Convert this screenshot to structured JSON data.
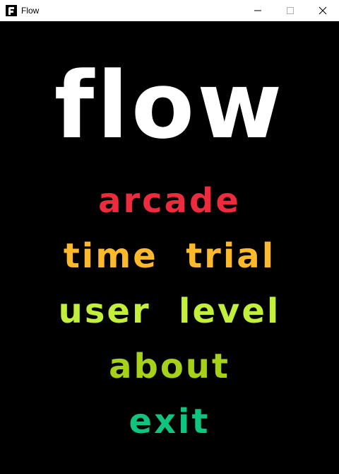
{
  "window": {
    "title": "Flow",
    "icon": "flow-app-icon",
    "controls": [
      "minimize-icon",
      "maximize-icon",
      "close-icon"
    ]
  },
  "logo": {
    "text": "flow",
    "color": "#ffffff"
  },
  "menu": {
    "items": [
      {
        "label": "arcade",
        "color": "#ee2b3c"
      },
      {
        "label": "time  trial",
        "color": "#fdb92c"
      },
      {
        "label": "user  level",
        "color": "#c1ef3a"
      },
      {
        "label": "about",
        "color": "#a5d219"
      },
      {
        "label": "exit",
        "color": "#0ec47e"
      }
    ]
  }
}
